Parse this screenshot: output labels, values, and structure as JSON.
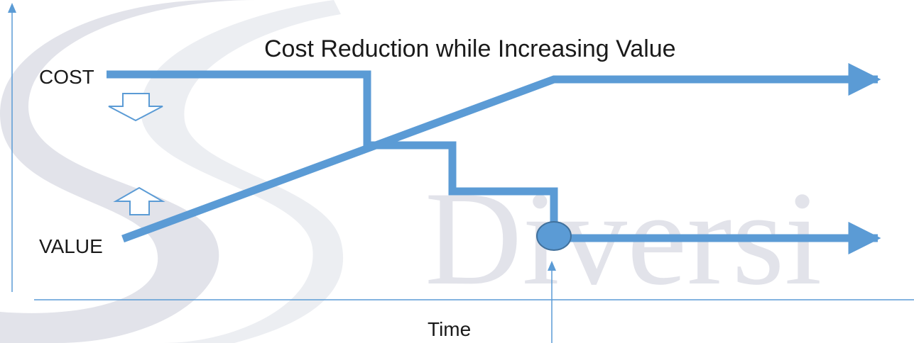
{
  "title": "Cost Reduction while Increasing Value",
  "labels": {
    "cost": "COST",
    "value": "VALUE",
    "x_axis": "Time"
  },
  "watermark": {
    "letter": "S",
    "word": "Diversi"
  },
  "colors": {
    "line": "#5b9bd5",
    "axis": "#5b9bd5",
    "watermark": "#e2e3ea",
    "text": "#1a1a1a"
  },
  "icons": {
    "cost_direction": "down-arrow-outline-icon",
    "value_direction": "up-arrow-outline-icon"
  }
}
